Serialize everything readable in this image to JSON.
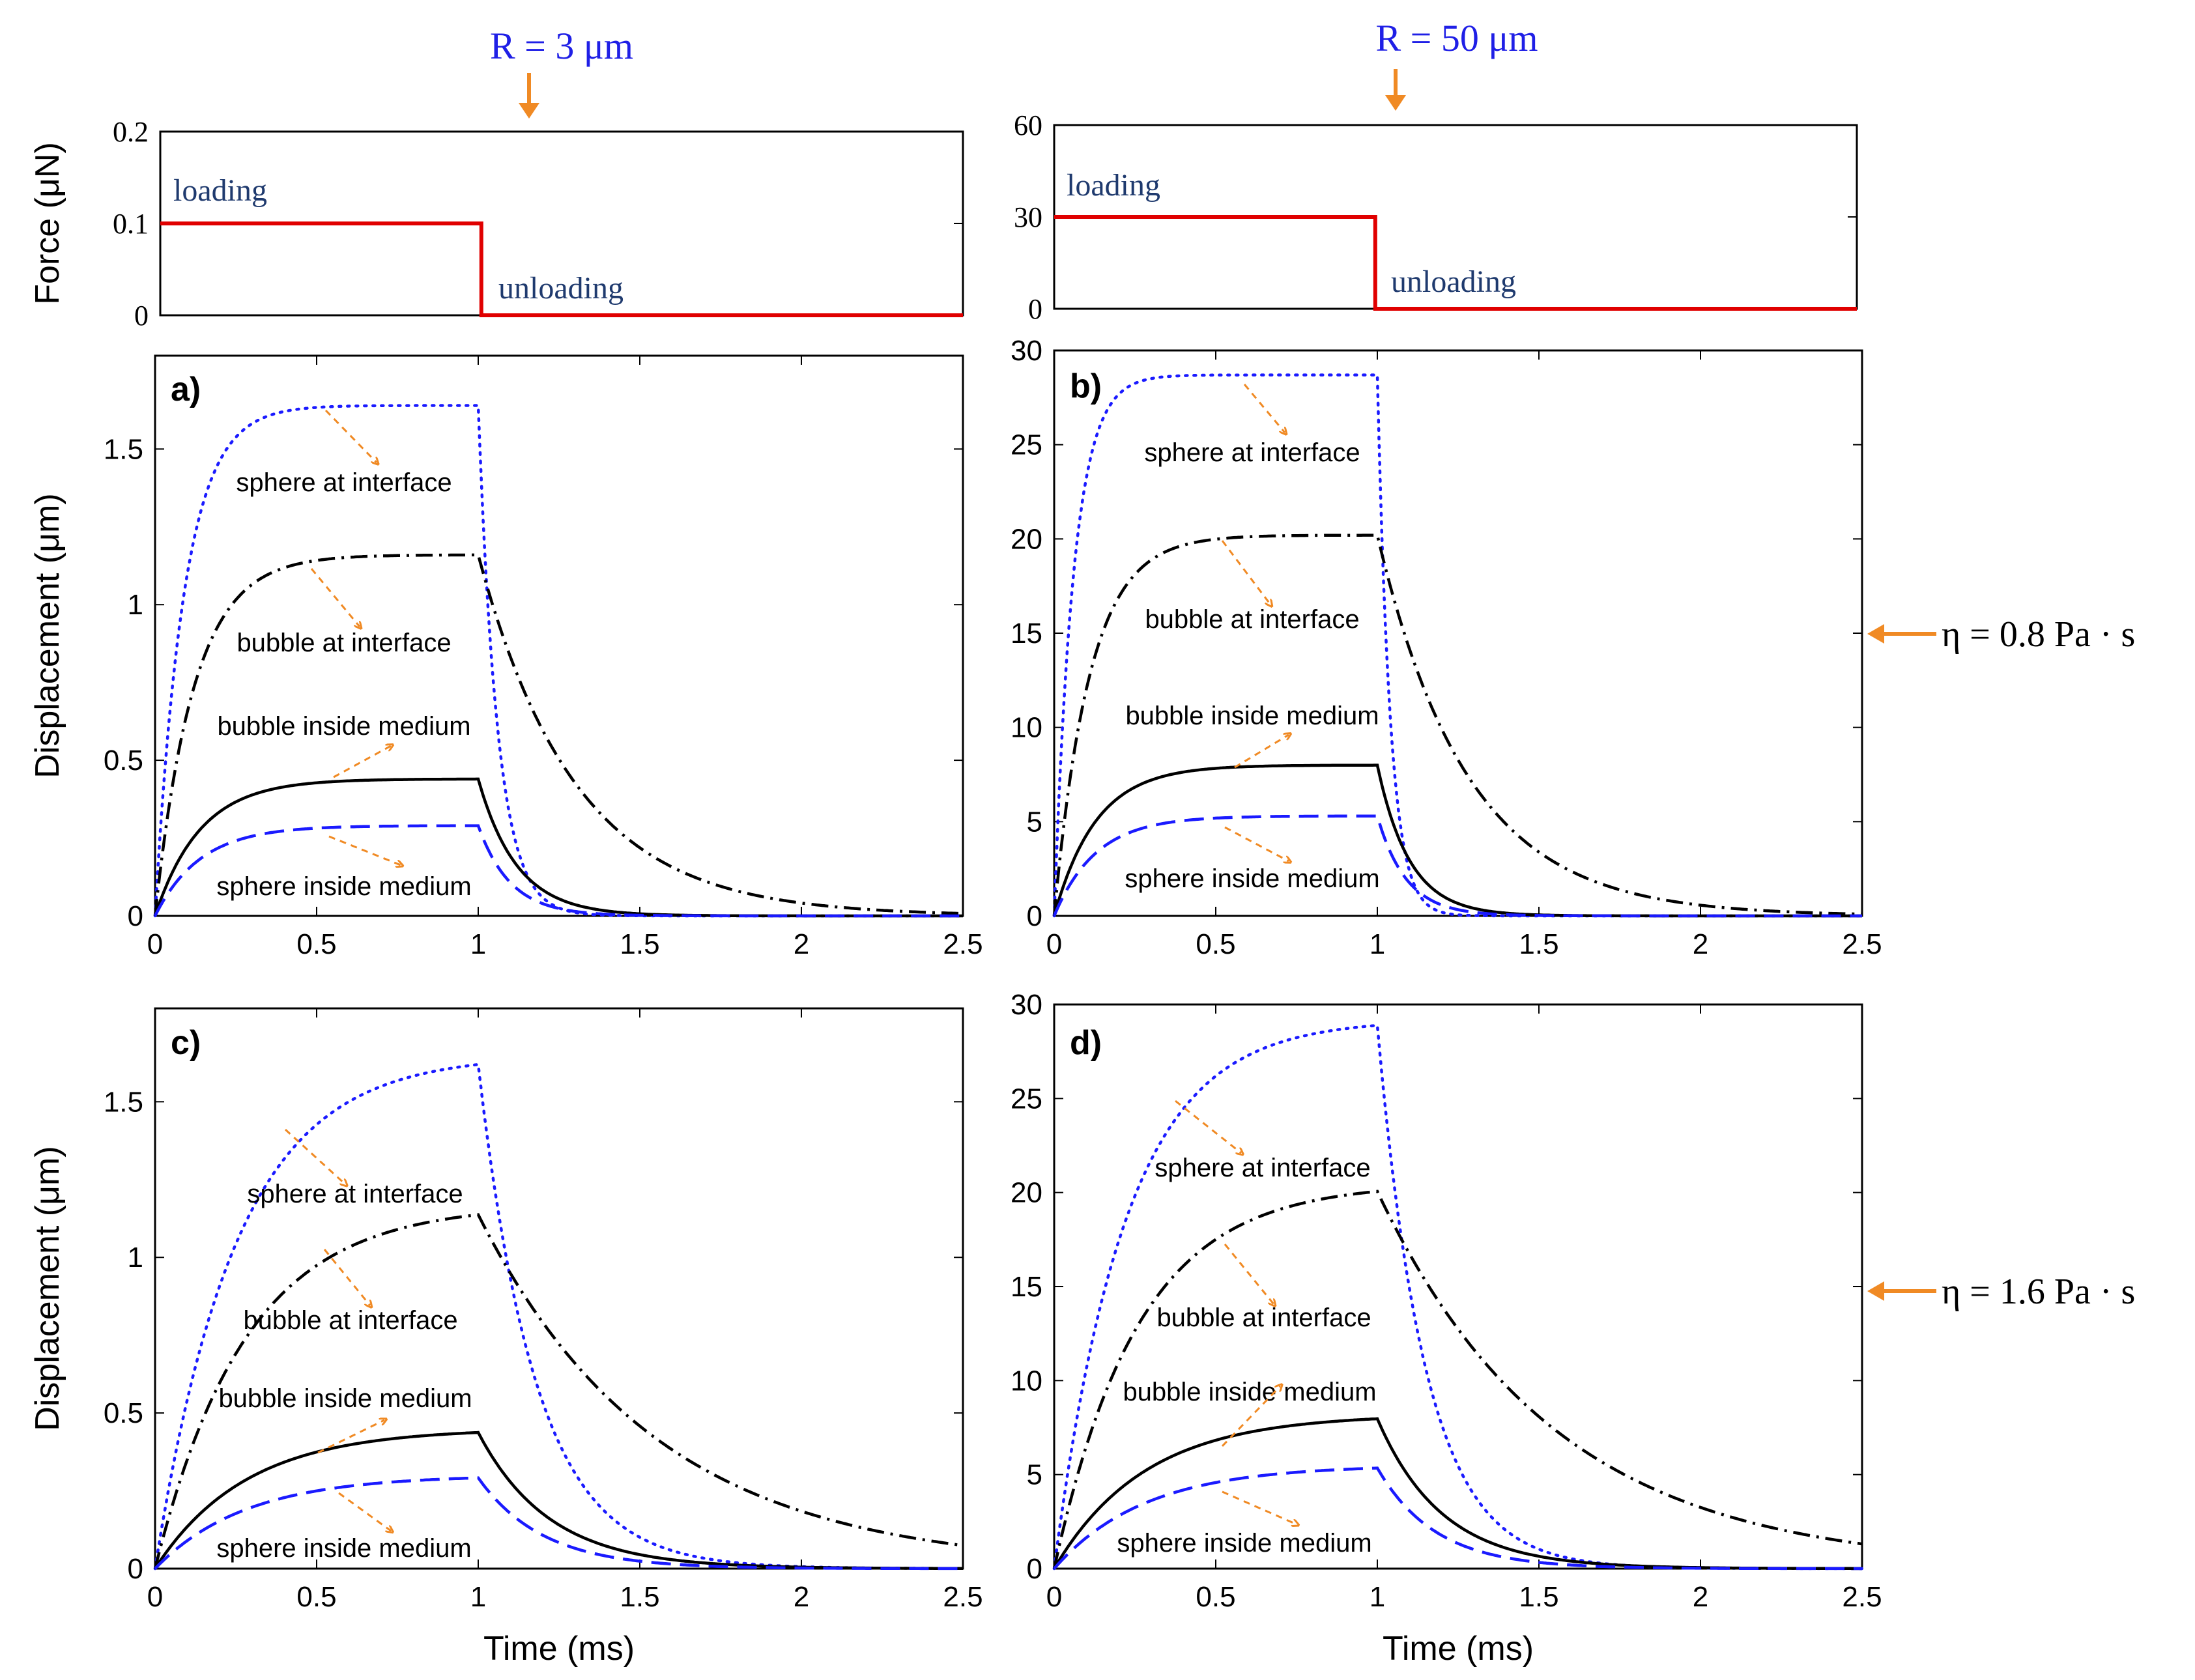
{
  "colors": {
    "blue": "#1a1aff",
    "black": "#000000",
    "red": "#e00000",
    "orange": "#f08a24",
    "label_blue": "#1f3a6e",
    "radius_blue": "#1f1fe6"
  },
  "headers": {
    "left_radius": "R = 3 μm",
    "right_radius": "R = 50 μm",
    "eta_top": "η = 0.8 Pa · s",
    "eta_bottom": "η = 1.6 Pa · s"
  },
  "force": {
    "ylabel": "Force (μN)",
    "loading_label": "loading",
    "unloading_label": "unloading"
  },
  "axes": {
    "ylabel": "Displacement (μm)",
    "xlabel": "Time (ms)"
  },
  "annotations": {
    "sphere_interface": "sphere at interface",
    "bubble_interface": "bubble at interface",
    "bubble_inside": "bubble inside medium",
    "sphere_inside": "sphere inside medium"
  },
  "chart_data": [
    {
      "id": "force-left",
      "type": "line",
      "xlim": [
        0,
        2.5
      ],
      "ylim": [
        0,
        0.2
      ],
      "yticks": [
        0,
        0.1,
        0.2
      ],
      "ytick_labels": [
        "0",
        "0.1",
        "0.2"
      ],
      "series": [
        {
          "name": "force",
          "x": [
            0,
            1,
            1,
            2.5
          ],
          "y": [
            0.1,
            0.1,
            0,
            0
          ]
        }
      ]
    },
    {
      "id": "force-right",
      "type": "line",
      "xlim": [
        0,
        2.5
      ],
      "ylim": [
        0,
        60
      ],
      "yticks": [
        0,
        30,
        60
      ],
      "ytick_labels": [
        "0",
        "30",
        "60"
      ],
      "series": [
        {
          "name": "force",
          "x": [
            0,
            1,
            1,
            2.5
          ],
          "y": [
            30,
            30,
            0,
            0
          ]
        }
      ]
    },
    {
      "id": "a",
      "type": "line",
      "panel_label": "a)",
      "xlim": [
        0,
        2.5
      ],
      "ylim": [
        0,
        1.8
      ],
      "xticks": [
        0,
        0.5,
        1,
        1.5,
        2,
        2.5
      ],
      "xtick_labels": [
        "0",
        "0.5",
        "1",
        "1.5",
        "2",
        "2.5"
      ],
      "yticks": [
        0,
        0.5,
        1,
        1.5
      ],
      "ytick_labels": [
        "0",
        "0.5",
        "1",
        "1.5"
      ],
      "series": [
        {
          "name": "sphere at interface",
          "style": "dotted",
          "color": "blue",
          "plateau": 1.64,
          "tau_load": 0.09,
          "tau_unload": 0.06
        },
        {
          "name": "bubble at interface",
          "style": "dashdot",
          "color": "black",
          "plateau": 1.16,
          "tau_load": 0.12,
          "tau_unload": 0.3
        },
        {
          "name": "bubble inside medium",
          "style": "solid",
          "color": "black",
          "plateau": 0.44,
          "tau_load": 0.14,
          "tau_unload": 0.12
        },
        {
          "name": "sphere inside medium",
          "style": "dashed",
          "color": "blue",
          "plateau": 0.29,
          "tau_load": 0.14,
          "tau_unload": 0.1
        }
      ]
    },
    {
      "id": "b",
      "type": "line",
      "panel_label": "b)",
      "xlim": [
        0,
        2.5
      ],
      "ylim": [
        0,
        30
      ],
      "xticks": [
        0,
        0.5,
        1,
        1.5,
        2,
        2.5
      ],
      "xtick_labels": [
        "0",
        "0.5",
        "1",
        "1.5",
        "2",
        "2.5"
      ],
      "yticks": [
        0,
        5,
        10,
        15,
        20,
        25,
        30
      ],
      "ytick_labels": [
        "0",
        "5",
        "10",
        "15",
        "20",
        "25",
        "30"
      ],
      "series": [
        {
          "name": "sphere at interface",
          "style": "dotted",
          "color": "blue",
          "plateau": 28.7,
          "tau_load": 0.06,
          "tau_unload": 0.04
        },
        {
          "name": "bubble at interface",
          "style": "dashdot",
          "color": "black",
          "plateau": 20.2,
          "tau_load": 0.11,
          "tau_unload": 0.28
        },
        {
          "name": "bubble inside medium",
          "style": "solid",
          "color": "black",
          "plateau": 8.0,
          "tau_load": 0.13,
          "tau_unload": 0.1
        },
        {
          "name": "sphere inside medium",
          "style": "dashed",
          "color": "blue",
          "plateau": 5.3,
          "tau_load": 0.13,
          "tau_unload": 0.09
        }
      ]
    },
    {
      "id": "c",
      "type": "line",
      "panel_label": "c)",
      "xlim": [
        0,
        2.5
      ],
      "ylim": [
        0,
        1.8
      ],
      "xticks": [
        0,
        0.5,
        1,
        1.5,
        2,
        2.5
      ],
      "xtick_labels": [
        "0",
        "0.5",
        "1",
        "1.5",
        "2",
        "2.5"
      ],
      "yticks": [
        0,
        0.5,
        1,
        1.5
      ],
      "ytick_labels": [
        "0",
        "0.5",
        "1",
        "1.5"
      ],
      "series": [
        {
          "name": "sphere at interface",
          "style": "dotted",
          "color": "blue",
          "plateau": 1.65,
          "tau_load": 0.25,
          "tau_unload": 0.18
        },
        {
          "name": "bubble at interface",
          "style": "dashdot",
          "color": "black",
          "plateau": 1.17,
          "tau_load": 0.28,
          "tau_unload": 0.55
        },
        {
          "name": "bubble inside medium",
          "style": "solid",
          "color": "black",
          "plateau": 0.45,
          "tau_load": 0.28,
          "tau_unload": 0.22
        },
        {
          "name": "sphere inside medium",
          "style": "dashed",
          "color": "blue",
          "plateau": 0.3,
          "tau_load": 0.28,
          "tau_unload": 0.2
        }
      ]
    },
    {
      "id": "d",
      "type": "line",
      "panel_label": "d)",
      "xlim": [
        0,
        2.5
      ],
      "ylim": [
        0,
        30
      ],
      "xticks": [
        0,
        0.5,
        1,
        1.5,
        2,
        2.5
      ],
      "xtick_labels": [
        "0",
        "0.5",
        "1",
        "1.5",
        "2",
        "2.5"
      ],
      "yticks": [
        0,
        5,
        10,
        15,
        20,
        25,
        30
      ],
      "ytick_labels": [
        "0",
        "5",
        "10",
        "15",
        "20",
        "25",
        "30"
      ],
      "series": [
        {
          "name": "sphere at interface",
          "style": "dotted",
          "color": "blue",
          "plateau": 29.2,
          "tau_load": 0.22,
          "tau_unload": 0.15
        },
        {
          "name": "bubble at interface",
          "style": "dashdot",
          "color": "black",
          "plateau": 20.5,
          "tau_load": 0.26,
          "tau_unload": 0.55
        },
        {
          "name": "bubble inside medium",
          "style": "solid",
          "color": "black",
          "plateau": 8.2,
          "tau_load": 0.28,
          "tau_unload": 0.2
        },
        {
          "name": "sphere inside medium",
          "style": "dashed",
          "color": "blue",
          "plateau": 5.5,
          "tau_load": 0.28,
          "tau_unload": 0.18
        }
      ]
    }
  ]
}
